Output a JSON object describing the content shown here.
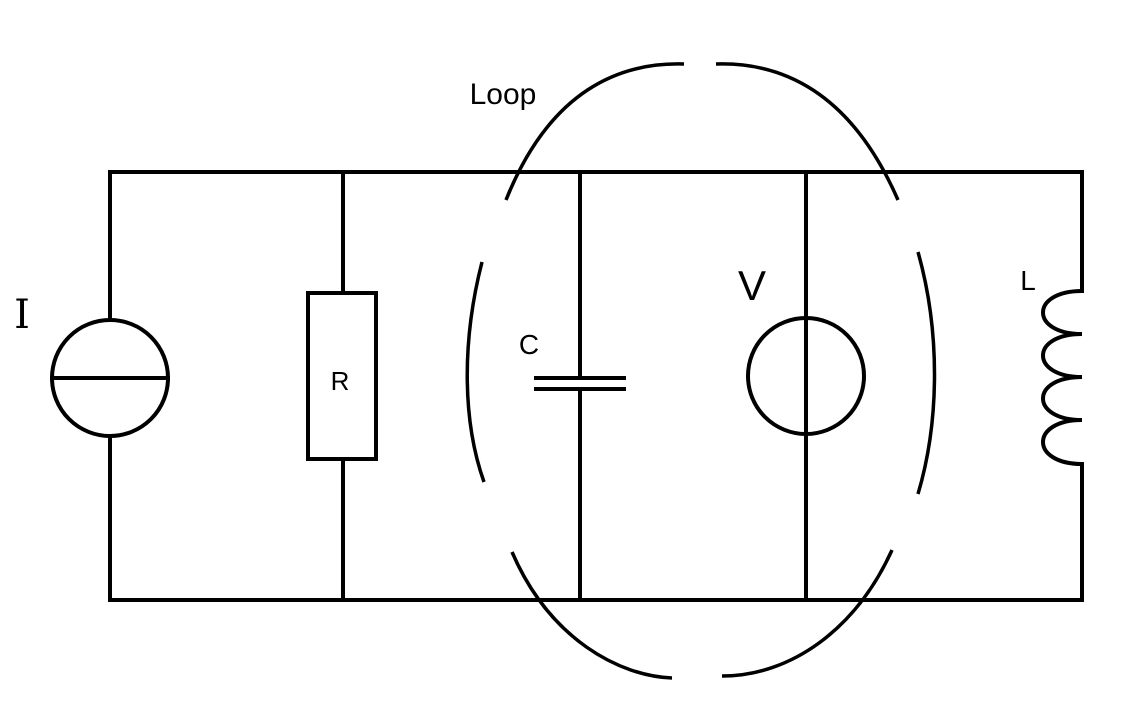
{
  "labels": {
    "loop": "Loop",
    "current_source": "I",
    "resistor": "R",
    "capacitor": "C",
    "voltage_source": "V",
    "inductor": "L"
  },
  "colors": {
    "ink": "#000000",
    "background": "#ffffff"
  }
}
